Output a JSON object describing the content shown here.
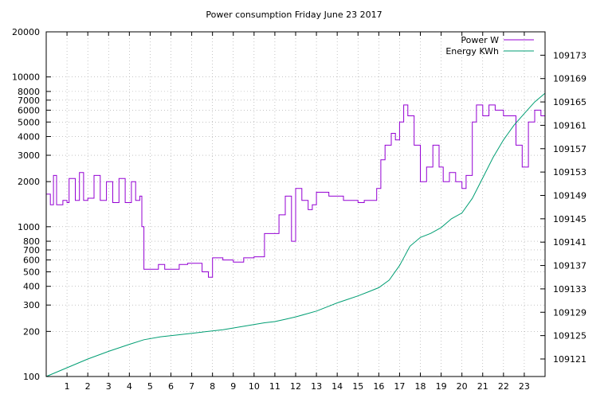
{
  "chart_data": {
    "type": "line",
    "title": "Power consumption Friday June 23 2017",
    "xlabel": "",
    "ylabel": "",
    "x_ticks": [
      "1",
      "2",
      "3",
      "4",
      "5",
      "6",
      "7",
      "8",
      "9",
      "10",
      "11",
      "12",
      "13",
      "14",
      "15",
      "16",
      "17",
      "18",
      "19",
      "20",
      "21",
      "22",
      "23"
    ],
    "xlim": [
      0,
      24
    ],
    "y_left_scale": "log",
    "y_left_ticks": [
      "100",
      "200",
      "300",
      "400",
      "500",
      "600",
      "700",
      "800",
      "1000",
      "2000",
      "3000",
      "4000",
      "5000",
      "6000",
      "7000",
      "8000",
      "10000",
      "20000"
    ],
    "ylim_left": [
      100,
      20000
    ],
    "y_right_ticks": [
      "109121",
      "109125",
      "109129",
      "109133",
      "109137",
      "109141",
      "109145",
      "109149",
      "109153",
      "109157",
      "109161",
      "109165",
      "109169",
      "109173"
    ],
    "ylim_right": [
      109118,
      109177
    ],
    "grid": true,
    "legend_position": "top-right",
    "series": [
      {
        "name": "Power W",
        "axis": "left",
        "color": "#9400d3",
        "style": "step",
        "x": [
          0,
          0.2,
          0.35,
          0.5,
          0.8,
          1.0,
          1.1,
          1.4,
          1.6,
          1.8,
          2.0,
          2.3,
          2.6,
          2.9,
          3.2,
          3.5,
          3.8,
          4.1,
          4.3,
          4.5,
          4.6,
          4.7,
          5.0,
          5.4,
          5.7,
          6.0,
          6.4,
          6.8,
          7.2,
          7.5,
          7.8,
          8.0,
          8.2,
          8.5,
          9.0,
          9.5,
          10.0,
          10.5,
          10.9,
          11.2,
          11.5,
          11.8,
          12.0,
          12.3,
          12.6,
          12.8,
          13.0,
          13.3,
          13.6,
          14.0,
          14.3,
          14.6,
          15.0,
          15.3,
          15.6,
          15.9,
          16.1,
          16.3,
          16.6,
          16.8,
          17.0,
          17.2,
          17.4,
          17.7,
          18.0,
          18.3,
          18.6,
          18.9,
          19.1,
          19.4,
          19.7,
          20.0,
          20.2,
          20.5,
          20.7,
          21.0,
          21.3,
          21.6,
          22.0,
          22.3,
          22.6,
          22.9,
          23.2,
          23.5,
          23.8,
          24.0
        ],
        "values": [
          1650,
          1400,
          2200,
          1400,
          1500,
          1450,
          2100,
          1500,
          2300,
          1500,
          1550,
          2200,
          1500,
          2000,
          1450,
          2100,
          1450,
          2000,
          1500,
          1600,
          1000,
          520,
          520,
          560,
          520,
          520,
          560,
          570,
          570,
          500,
          460,
          620,
          620,
          600,
          580,
          620,
          630,
          900,
          900,
          1200,
          1600,
          800,
          1800,
          1500,
          1300,
          1400,
          1700,
          1700,
          1600,
          1600,
          1500,
          1500,
          1450,
          1500,
          1500,
          1800,
          2800,
          3500,
          4200,
          3800,
          5000,
          6500,
          5500,
          3500,
          2000,
          2500,
          3500,
          2500,
          2000,
          2300,
          2000,
          1800,
          2200,
          5000,
          6500,
          5500,
          6500,
          6000,
          5500,
          5500,
          3500,
          2500,
          5000,
          6000,
          5500,
          6000
        ]
      },
      {
        "name": "Energy KWh",
        "axis": "right",
        "color": "#009e73",
        "style": "line",
        "x": [
          0,
          1,
          2,
          3,
          4,
          4.7,
          5.5,
          6.5,
          7.5,
          8.5,
          9.5,
          10.5,
          11,
          11.5,
          12,
          12.5,
          13,
          13.5,
          14,
          14.5,
          15,
          15.5,
          16,
          16.5,
          17,
          17.5,
          18,
          18.5,
          19,
          19.5,
          20,
          20.5,
          21,
          21.5,
          22,
          22.5,
          23,
          23.5,
          24
        ],
        "values": [
          109118,
          109119.5,
          109121,
          109122.3,
          109123.5,
          109124.3,
          109124.8,
          109125.2,
          109125.6,
          109126,
          109126.6,
          109127.2,
          109127.4,
          109127.8,
          109128.2,
          109128.7,
          109129.2,
          109129.9,
          109130.6,
          109131.2,
          109131.8,
          109132.5,
          109133.2,
          109134.5,
          109137,
          109140.3,
          109141.8,
          109142.5,
          109143.5,
          109145,
          109146,
          109148.5,
          109152,
          109155.5,
          109158.5,
          109161,
          109163,
          109165,
          109166.5
        ]
      }
    ]
  }
}
